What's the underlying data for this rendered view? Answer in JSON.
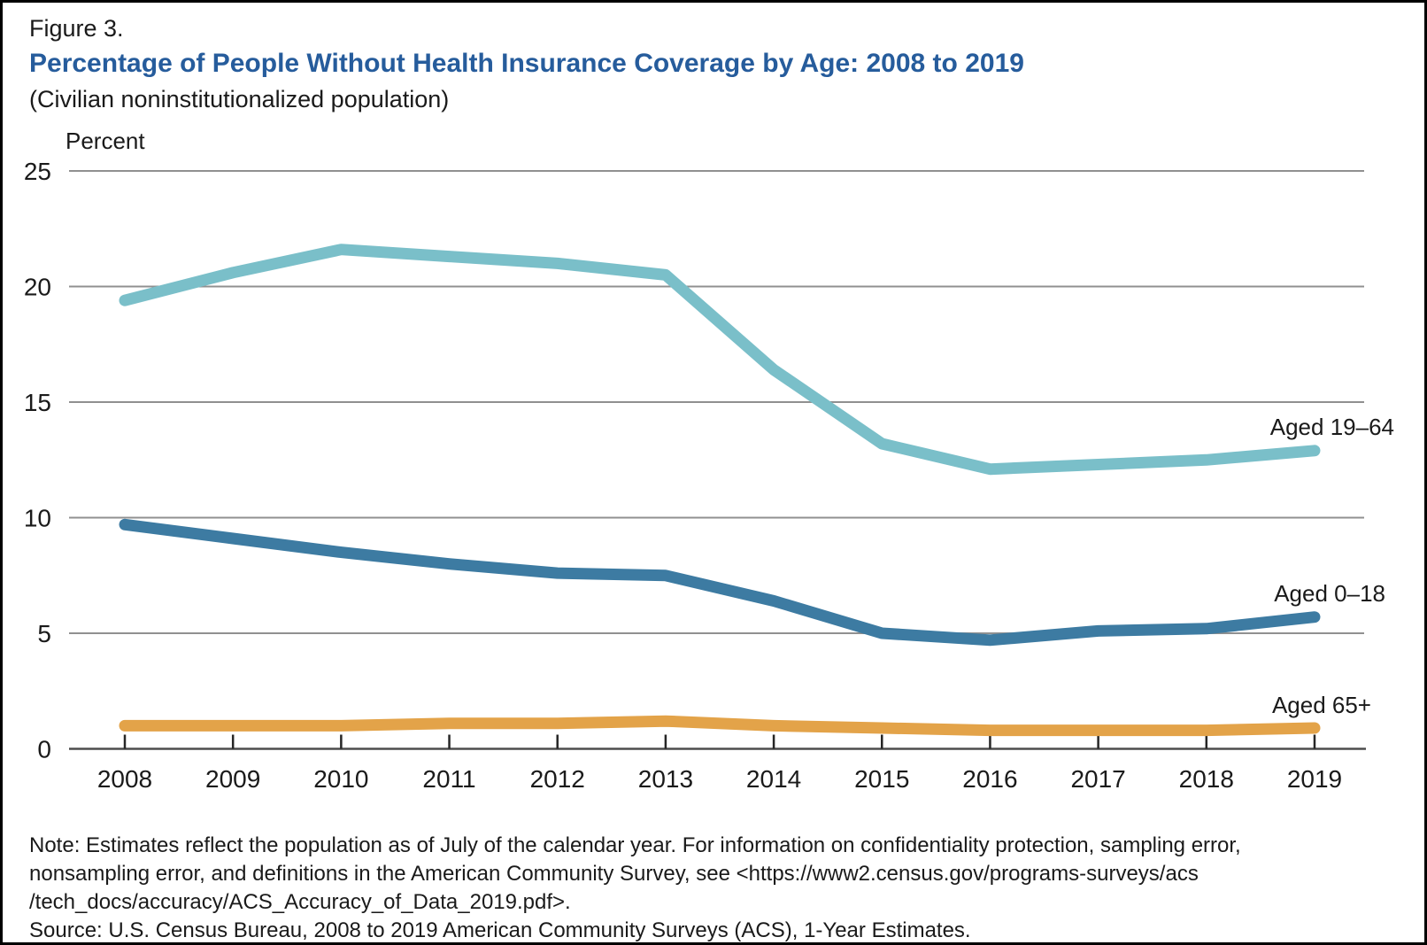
{
  "figure": {
    "label": "Figure 3.",
    "title": "Percentage of People Without Health Insurance Coverage by Age: 2008 to 2019",
    "subtitle": "(Civilian noninstitutionalized population)"
  },
  "chart_data": {
    "type": "line",
    "title": "Percentage of People Without Health Insurance Coverage by Age: 2008 to 2019",
    "unit_label": "Percent",
    "xlabel": "",
    "ylabel": "Percent",
    "categories": [
      "2008",
      "2009",
      "2010",
      "2011",
      "2012",
      "2013",
      "2014",
      "2015",
      "2016",
      "2017",
      "2018",
      "2019"
    ],
    "series": [
      {
        "name": "Aged 19–64",
        "color": "#7ABFC9",
        "values": [
          19.4,
          20.6,
          21.6,
          21.3,
          21.0,
          20.5,
          16.4,
          13.2,
          12.1,
          12.3,
          12.5,
          12.9
        ]
      },
      {
        "name": "Aged 0–18",
        "color": "#3D7BA2",
        "values": [
          9.7,
          9.1,
          8.5,
          8.0,
          7.6,
          7.5,
          6.4,
          5.0,
          4.7,
          5.1,
          5.2,
          5.7
        ]
      },
      {
        "name": "Aged 65+",
        "color": "#E3A349",
        "values": [
          1.0,
          1.0,
          1.0,
          1.1,
          1.1,
          1.2,
          1.0,
          0.9,
          0.8,
          0.8,
          0.8,
          0.9
        ]
      }
    ],
    "yticks": [
      0,
      5,
      10,
      15,
      20,
      25
    ],
    "ylim": [
      0,
      25
    ],
    "grid": true,
    "legend_position": "inline-right-of-lines"
  },
  "colors": {
    "title_blue": "#265C9C",
    "gridline": "#909090",
    "axis_line": "#4d4d4d",
    "tick": "#262626",
    "text": "#1a1a1a"
  },
  "notes": {
    "line1": "Note: Estimates reflect the population as of July of the calendar year. For information on confidentiality protection, sampling error,",
    "line2": "nonsampling error, and definitions in the American Community Survey, see <https://www2.census.gov/programs-surveys/acs",
    "line3": "/tech_docs/accuracy/ACS_Accuracy_of_Data_2019.pdf>.",
    "line4": "Source: U.S. Census Bureau, 2008 to 2019 American Community Surveys (ACS), 1-Year Estimates."
  }
}
